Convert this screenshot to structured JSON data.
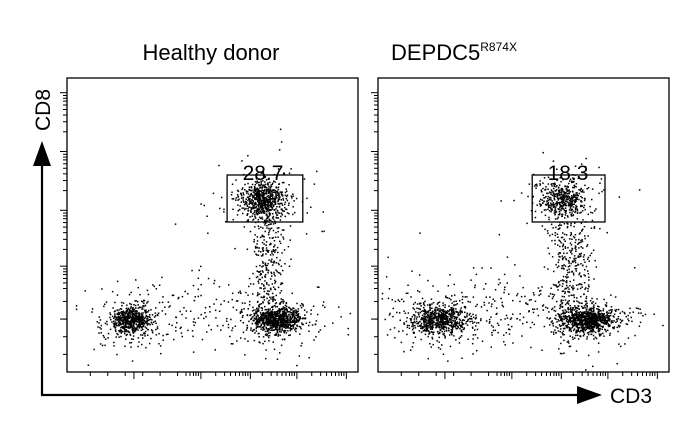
{
  "chart_data": {
    "type": "scatter",
    "description_type": "flow cytometry dot plot",
    "xlabel": "CD3",
    "ylabel": "CD8",
    "xlim": [
      0,
      100
    ],
    "ylim": [
      0,
      100
    ],
    "panels": [
      {
        "title": "Healthy donor",
        "title_superscript": "",
        "gate_percent": "28.7",
        "gate_range": {
          "x": [
            55,
            81
          ],
          "y": [
            51,
            67
          ]
        },
        "populations": [
          {
            "name": "CD3- CD8-",
            "cx": 22,
            "cy": 18,
            "sx": 3.2,
            "sy": 2.2,
            "count": 650,
            "tail": 0.2
          },
          {
            "name": "CD3+ CD8-",
            "cx": 72,
            "cy": 18,
            "sx": 4.5,
            "sy": 2.2,
            "count": 900,
            "tail": 0.15
          },
          {
            "name": "CD3+ CD8+",
            "cx": 67,
            "cy": 59,
            "sx": 3.8,
            "sy": 3.2,
            "count": 700,
            "tail": 0.1
          },
          {
            "name": "CD3+ bridge",
            "cx": 69,
            "cy": 38,
            "sx": 3.0,
            "sy": 12,
            "count": 320,
            "tail": 0
          },
          {
            "name": "scatter",
            "cx": 45,
            "cy": 22,
            "sx": 14,
            "sy": 6,
            "count": 120,
            "tail": 0
          }
        ]
      },
      {
        "title": "DEPDC5",
        "title_superscript": "R874X",
        "gate_percent": "18.3",
        "gate_range": {
          "x": [
            53,
            78
          ],
          "y": [
            51,
            67
          ]
        },
        "populations": [
          {
            "name": "CD3- CD8-",
            "cx": 21,
            "cy": 18,
            "sx": 5,
            "sy": 2.3,
            "count": 800,
            "tail": 0.25
          },
          {
            "name": "CD3+ CD8-",
            "cx": 72,
            "cy": 18,
            "sx": 4.8,
            "sy": 2.2,
            "count": 950,
            "tail": 0.15
          },
          {
            "name": "CD3+ CD8+",
            "cx": 63,
            "cy": 59,
            "sx": 4.0,
            "sy": 3.2,
            "count": 450,
            "tail": 0.1
          },
          {
            "name": "CD3+ bridge",
            "cx": 66,
            "cy": 37,
            "sx": 3.5,
            "sy": 12,
            "count": 330,
            "tail": 0
          },
          {
            "name": "scatter",
            "cx": 42,
            "cy": 22,
            "sx": 16,
            "sy": 7,
            "count": 140,
            "tail": 0
          }
        ]
      }
    ]
  }
}
